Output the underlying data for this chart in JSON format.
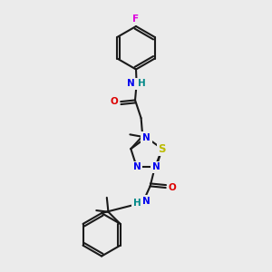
{
  "bg": "#ebebeb",
  "C": "#1a1a1a",
  "N": "#0000ee",
  "O": "#dd0000",
  "F": "#dd00dd",
  "S": "#bbbb00",
  "NH_color": "#008888",
  "lw": 1.5,
  "fs": 7.5,
  "fs_small": 6.5
}
